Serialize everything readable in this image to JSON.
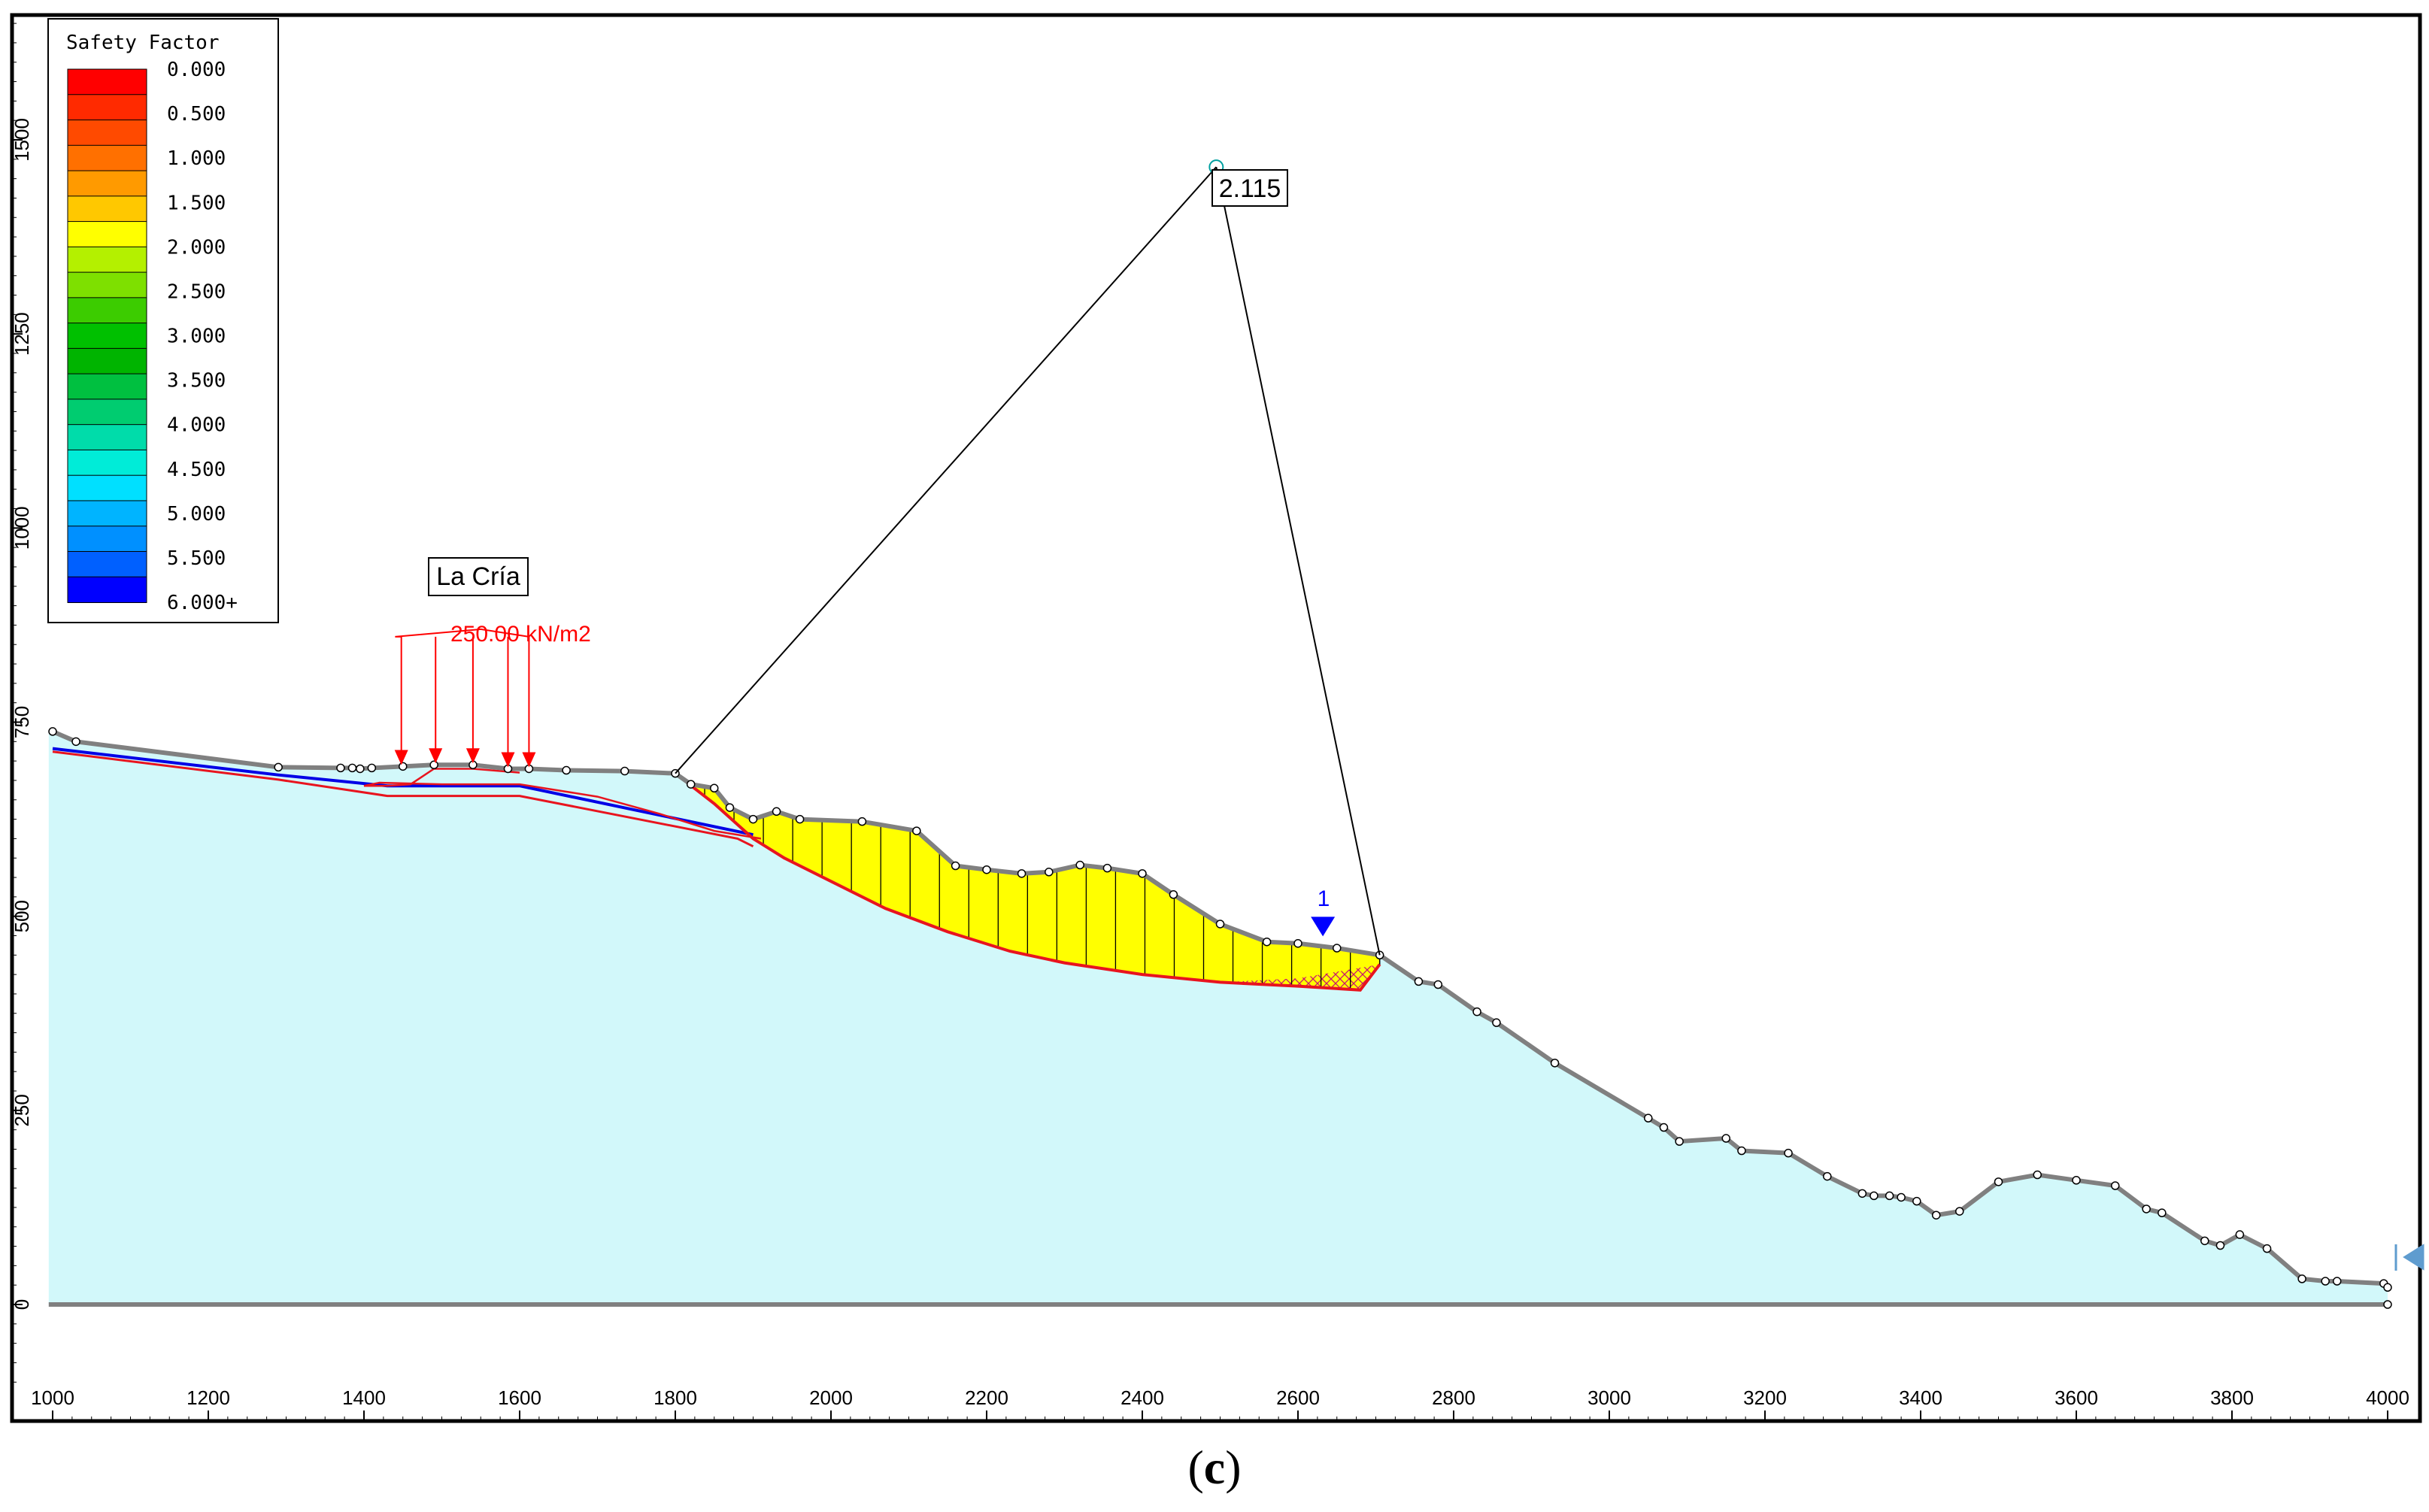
{
  "caption": {
    "open": "(",
    "letter": "c",
    "close": ")"
  },
  "legend": {
    "title": "Safety Factor",
    "entries": [
      {
        "label": "0.000",
        "color": "#ff0000"
      },
      {
        "label": "0.500",
        "color": "#ff3c00"
      },
      {
        "label": "1.000",
        "color": "#ff8c00"
      },
      {
        "label": "1.500",
        "color": "#ffd200"
      },
      {
        "label": "2.000",
        "color": "#c8ee00"
      },
      {
        "label": "2.500",
        "color": "#39d400"
      },
      {
        "label": "3.000",
        "color": "#00c800"
      },
      {
        "label": "3.500",
        "color": "#00c84a"
      },
      {
        "label": "4.000",
        "color": "#00dc9a"
      },
      {
        "label": "4.500",
        "color": "#00f0dc"
      },
      {
        "label": "5.000",
        "color": "#00b4ff"
      },
      {
        "label": "5.500",
        "color": "#0070ff"
      },
      {
        "label": "6.000+",
        "color": "#0000ff"
      }
    ],
    "bands": [
      "#ff0000",
      "#ff2a00",
      "#ff4a00",
      "#ff7000",
      "#ff9a00",
      "#ffc800",
      "#ffff00",
      "#b4f000",
      "#7ee000",
      "#3ccc00",
      "#00c000",
      "#00b400",
      "#00c040",
      "#00cc70",
      "#00dcaa",
      "#00ecd8",
      "#00e0ff",
      "#00b4ff",
      "#0090ff",
      "#0060ff",
      "#0000ff"
    ]
  },
  "labels": {
    "site_name": "La Cría",
    "load": "250.00 kN/m2",
    "safety_factor": "2.115",
    "water_table_id": "1"
  },
  "colors": {
    "ground_fill": "#d2f8fa",
    "slide_mass": "#ffff00",
    "critical_surface": "#e8141e",
    "profile_line": "#808080",
    "water_marker": "#0000ff",
    "load_arrows": "#ff0000"
  },
  "chart_data": {
    "type": "slope-stability-section",
    "x_ticks": [
      1000,
      1200,
      1400,
      1600,
      1800,
      2000,
      2200,
      2400,
      2600,
      2800,
      3000,
      3200,
      3400,
      3600,
      3800,
      4000
    ],
    "y_ticks": [
      0,
      250,
      500,
      750,
      1000,
      1250,
      1500
    ],
    "xlim": [
      995,
      4045
    ],
    "ylim": [
      -100,
      1650
    ],
    "ground_surface": [
      [
        1000,
        738
      ],
      [
        1030,
        725
      ],
      [
        1290,
        692
      ],
      [
        1370,
        691
      ],
      [
        1385,
        691
      ],
      [
        1395,
        690
      ],
      [
        1410,
        691
      ],
      [
        1450,
        693
      ],
      [
        1490,
        695
      ],
      [
        1540,
        695
      ],
      [
        1585,
        690
      ],
      [
        1612,
        690
      ],
      [
        1660,
        688
      ],
      [
        1735,
        687
      ],
      [
        1800,
        684
      ],
      [
        1820,
        670
      ],
      [
        1850,
        665
      ],
      [
        1870,
        640
      ],
      [
        1900,
        625
      ],
      [
        1930,
        635
      ],
      [
        1960,
        625
      ],
      [
        2040,
        622
      ],
      [
        2110,
        610
      ],
      [
        2160,
        565
      ],
      [
        2200,
        560
      ],
      [
        2245,
        555
      ],
      [
        2280,
        557
      ],
      [
        2320,
        566
      ],
      [
        2355,
        562
      ],
      [
        2400,
        555
      ],
      [
        2440,
        528
      ],
      [
        2500,
        490
      ],
      [
        2560,
        467
      ],
      [
        2600,
        465
      ],
      [
        2650,
        459
      ],
      [
        2705,
        450
      ],
      [
        2755,
        416
      ],
      [
        2780,
        412
      ],
      [
        2830,
        377
      ],
      [
        2855,
        363
      ],
      [
        2930,
        311
      ],
      [
        3050,
        240
      ],
      [
        3070,
        228
      ],
      [
        3090,
        210
      ],
      [
        3150,
        214
      ],
      [
        3170,
        198
      ],
      [
        3230,
        195
      ],
      [
        3280,
        165
      ],
      [
        3325,
        143
      ],
      [
        3340,
        140
      ],
      [
        3360,
        140
      ],
      [
        3375,
        138
      ],
      [
        3395,
        133
      ],
      [
        3420,
        115
      ],
      [
        3450,
        120
      ],
      [
        3500,
        158
      ],
      [
        3550,
        167
      ],
      [
        3600,
        160
      ],
      [
        3650,
        153
      ],
      [
        3690,
        123
      ],
      [
        3710,
        118
      ],
      [
        3765,
        82
      ],
      [
        3785,
        76
      ],
      [
        3810,
        90
      ],
      [
        3845,
        72
      ],
      [
        3890,
        33
      ],
      [
        3920,
        30
      ],
      [
        3935,
        30
      ],
      [
        3995,
        27
      ],
      [
        4000,
        22
      ]
    ],
    "base_line": [
      [
        995,
        0
      ],
      [
        4000,
        0
      ]
    ],
    "critical_slip_surface": [
      [
        1800,
        684
      ],
      [
        1850,
        645
      ],
      [
        1900,
        600
      ],
      [
        1940,
        575
      ],
      [
        2000,
        545
      ],
      [
        2070,
        510
      ],
      [
        2150,
        480
      ],
      [
        2230,
        455
      ],
      [
        2300,
        440
      ],
      [
        2400,
        425
      ],
      [
        2500,
        415
      ],
      [
        2600,
        410
      ],
      [
        2680,
        405
      ],
      [
        2705,
        438
      ]
    ],
    "slip_surface_back_scarp": [
      [
        1600,
        685
      ],
      [
        1540,
        690
      ],
      [
        1490,
        690
      ],
      [
        1460,
        670
      ],
      [
        1430,
        668
      ],
      [
        1400,
        668
      ],
      [
        1420,
        672
      ],
      [
        1500,
        670
      ],
      [
        1600,
        670
      ],
      [
        1700,
        654
      ],
      [
        1780,
        632
      ],
      [
        1850,
        610
      ],
      [
        1910,
        600
      ]
    ],
    "slip_center": [
      2495,
      1465
    ],
    "slip_entry": [
      1800,
      684
    ],
    "slip_exit": [
      2705,
      450
    ],
    "water_table": [
      [
        1000,
        716
      ],
      [
        1290,
        682
      ],
      [
        1430,
        668
      ],
      [
        1600,
        668
      ],
      [
        1900,
        605
      ]
    ],
    "lower_boundary": [
      [
        1000,
        712
      ],
      [
        1290,
        676
      ],
      [
        1430,
        655
      ],
      [
        1600,
        655
      ],
      [
        1880,
        600
      ],
      [
        1900,
        590
      ]
    ],
    "load_arrows_x": [
      1448,
      1492,
      1540,
      1585,
      1612
    ],
    "water_marker_position": [
      2632,
      478
    ],
    "slice_count": 24
  }
}
